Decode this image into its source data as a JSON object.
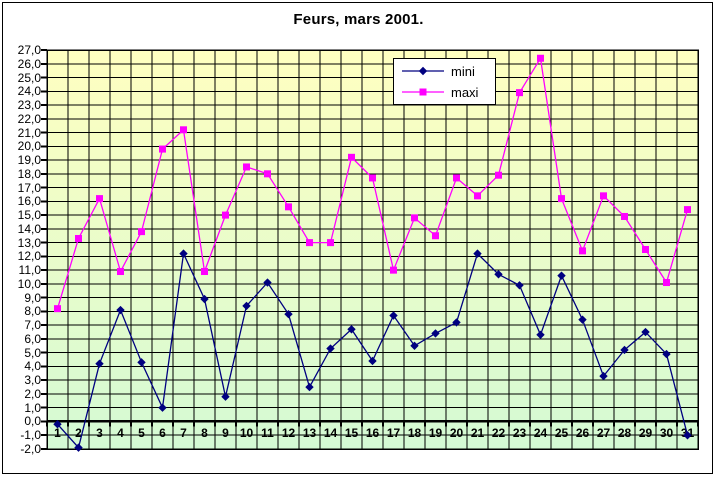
{
  "window": {
    "background": "#FFFFFF",
    "frame_border_color": "#000000"
  },
  "chart_data": {
    "type": "line",
    "title": "Feurs, mars 2001.",
    "x_categories": [
      1,
      2,
      3,
      4,
      5,
      6,
      7,
      8,
      9,
      10,
      11,
      12,
      13,
      14,
      15,
      16,
      17,
      18,
      19,
      20,
      21,
      22,
      23,
      24,
      25,
      26,
      27,
      28,
      29,
      30,
      31
    ],
    "series": [
      {
        "name": "mini",
        "color": "#000080",
        "marker": "diamond",
        "values": [
          -0.2,
          -1.9,
          4.2,
          8.1,
          4.3,
          1.0,
          12.2,
          8.9,
          1.8,
          8.4,
          10.1,
          7.8,
          2.5,
          5.3,
          6.7,
          4.4,
          7.7,
          5.5,
          6.4,
          7.2,
          12.2,
          10.7,
          9.9,
          6.3,
          10.6,
          7.4,
          3.3,
          5.2,
          6.5,
          4.9,
          -1.0
        ]
      },
      {
        "name": "maxi",
        "color": "#FF00FF",
        "marker": "square",
        "values": [
          8.2,
          13.3,
          16.2,
          10.9,
          13.8,
          19.8,
          21.2,
          10.9,
          15.0,
          18.5,
          18.0,
          15.6,
          13.0,
          13.0,
          19.2,
          17.7,
          11.0,
          14.8,
          13.5,
          17.7,
          16.4,
          17.9,
          23.9,
          26.4,
          16.2,
          12.4,
          16.4,
          14.9,
          12.5,
          10.1,
          15.4
        ]
      }
    ],
    "ylim": [
      -2,
      27
    ],
    "ytick_step": 1,
    "ytick_decimal_separator": ",",
    "grid": true,
    "gridline_color": "#000000",
    "axis_cross_value": 0,
    "legend_position": "top-center",
    "plot_bg_gradient": [
      "#FFFFC0",
      "#D4FAD4"
    ]
  }
}
